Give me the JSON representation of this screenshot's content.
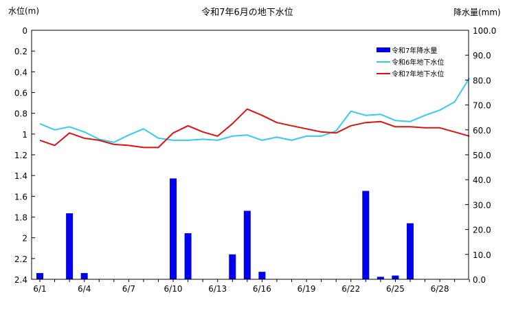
{
  "chart_data": {
    "type": "bar+line",
    "title": "令和7年6月の地下水位",
    "left_axis_label": "水位(m)",
    "right_axis_label": "降水量(mm)",
    "left_axis": {
      "min": 0,
      "max": 2.4,
      "step": 0.2,
      "inverted": true,
      "tick_labels": [
        "0",
        "0.2",
        "0.4",
        "0.6",
        "0.8",
        "1",
        "1.2",
        "1.4",
        "1.6",
        "1.8",
        "2",
        "2.2",
        "2.4"
      ]
    },
    "right_axis": {
      "min": 0,
      "max": 100,
      "step": 10,
      "tick_labels": [
        "0.0",
        "10.0",
        "20.0",
        "30.0",
        "40.0",
        "50.0",
        "60.0",
        "70.0",
        "80.0",
        "90.0",
        "100.0"
      ]
    },
    "x_categories": [
      "6/1",
      "6/2",
      "6/3",
      "6/4",
      "6/5",
      "6/6",
      "6/7",
      "6/8",
      "6/9",
      "6/10",
      "6/11",
      "6/12",
      "6/13",
      "6/14",
      "6/15",
      "6/16",
      "6/17",
      "6/18",
      "6/19",
      "6/20",
      "6/21",
      "6/22",
      "6/23",
      "6/24",
      "6/25",
      "6/26",
      "6/27",
      "6/28",
      "6/29",
      "6/30"
    ],
    "x_tick_labels": [
      "6/1",
      "6/4",
      "6/7",
      "6/10",
      "6/13",
      "6/16",
      "6/19",
      "6/22",
      "6/25",
      "6/28"
    ],
    "legend": [
      "令和7年降水量",
      "令和6年地下水位",
      "令和7年地下水位"
    ],
    "legend_position": "top-right",
    "grid": false,
    "colors": {
      "rain": "#0000ee",
      "level_r6": "#33ccee",
      "level_r7": "#dd1111"
    },
    "series": [
      {
        "name": "令和7年降水量",
        "kind": "bar",
        "axis": "right",
        "values": [
          2.5,
          0,
          26.5,
          2.5,
          0,
          0,
          0,
          0,
          0,
          40.5,
          18.5,
          0,
          0,
          10,
          27.5,
          3,
          0,
          0,
          0,
          0,
          0,
          0,
          35.5,
          1,
          1.5,
          22.5,
          0,
          0,
          0,
          0
        ]
      },
      {
        "name": "令和6年地下水位",
        "kind": "line",
        "axis": "left",
        "values": [
          0.9,
          0.96,
          0.93,
          0.98,
          1.05,
          1.08,
          1.01,
          0.95,
          1.04,
          1.06,
          1.06,
          1.05,
          1.06,
          1.02,
          1.01,
          1.06,
          1.03,
          1.06,
          1.02,
          1.02,
          0.97,
          0.78,
          0.82,
          0.81,
          0.87,
          0.88,
          0.82,
          0.77,
          0.69,
          0.46
        ]
      },
      {
        "name": "令和7年地下水位",
        "kind": "line",
        "axis": "left",
        "values": [
          1.06,
          1.11,
          0.99,
          1.04,
          1.06,
          1.1,
          1.11,
          1.13,
          1.13,
          0.99,
          0.92,
          0.98,
          1.02,
          0.9,
          0.76,
          0.82,
          0.89,
          0.92,
          0.95,
          0.98,
          0.99,
          0.92,
          0.89,
          0.88,
          0.93,
          0.93,
          0.94,
          0.94,
          0.98,
          1.02
        ]
      }
    ]
  }
}
